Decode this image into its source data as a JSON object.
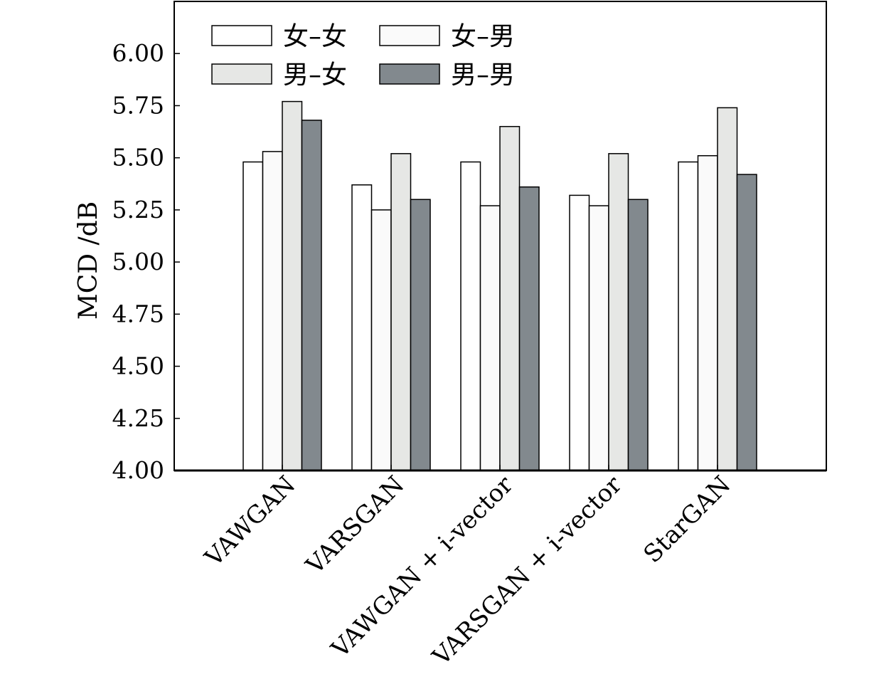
{
  "chart_data": {
    "type": "bar",
    "title": "",
    "xlabel": "",
    "ylabel": "MCD /dB",
    "ylim": [
      4.0,
      6.25
    ],
    "yticks": [
      "4.00",
      "4.25",
      "4.50",
      "4.75",
      "5.00",
      "5.25",
      "5.50",
      "5.75",
      "6.00"
    ],
    "grid": false,
    "legend_position": "top-left",
    "categories": [
      "VAWGAN",
      "VARSGAN",
      "VAWGAN + i-vector",
      "VARSGAN + i-vector",
      "StarGAN"
    ],
    "series": [
      {
        "name": "女–女",
        "color": "#ffffff",
        "values": [
          5.48,
          5.37,
          5.48,
          5.32,
          5.48
        ]
      },
      {
        "name": "女–男",
        "color": "#fafafa",
        "values": [
          5.53,
          5.25,
          5.27,
          5.27,
          5.51
        ]
      },
      {
        "name": "男–女",
        "color": "#e6e7e5",
        "values": [
          5.77,
          5.52,
          5.65,
          5.52,
          5.74
        ]
      },
      {
        "name": "男–男",
        "color": "#82898e",
        "values": [
          5.68,
          5.3,
          5.36,
          5.3,
          5.42
        ]
      }
    ]
  }
}
